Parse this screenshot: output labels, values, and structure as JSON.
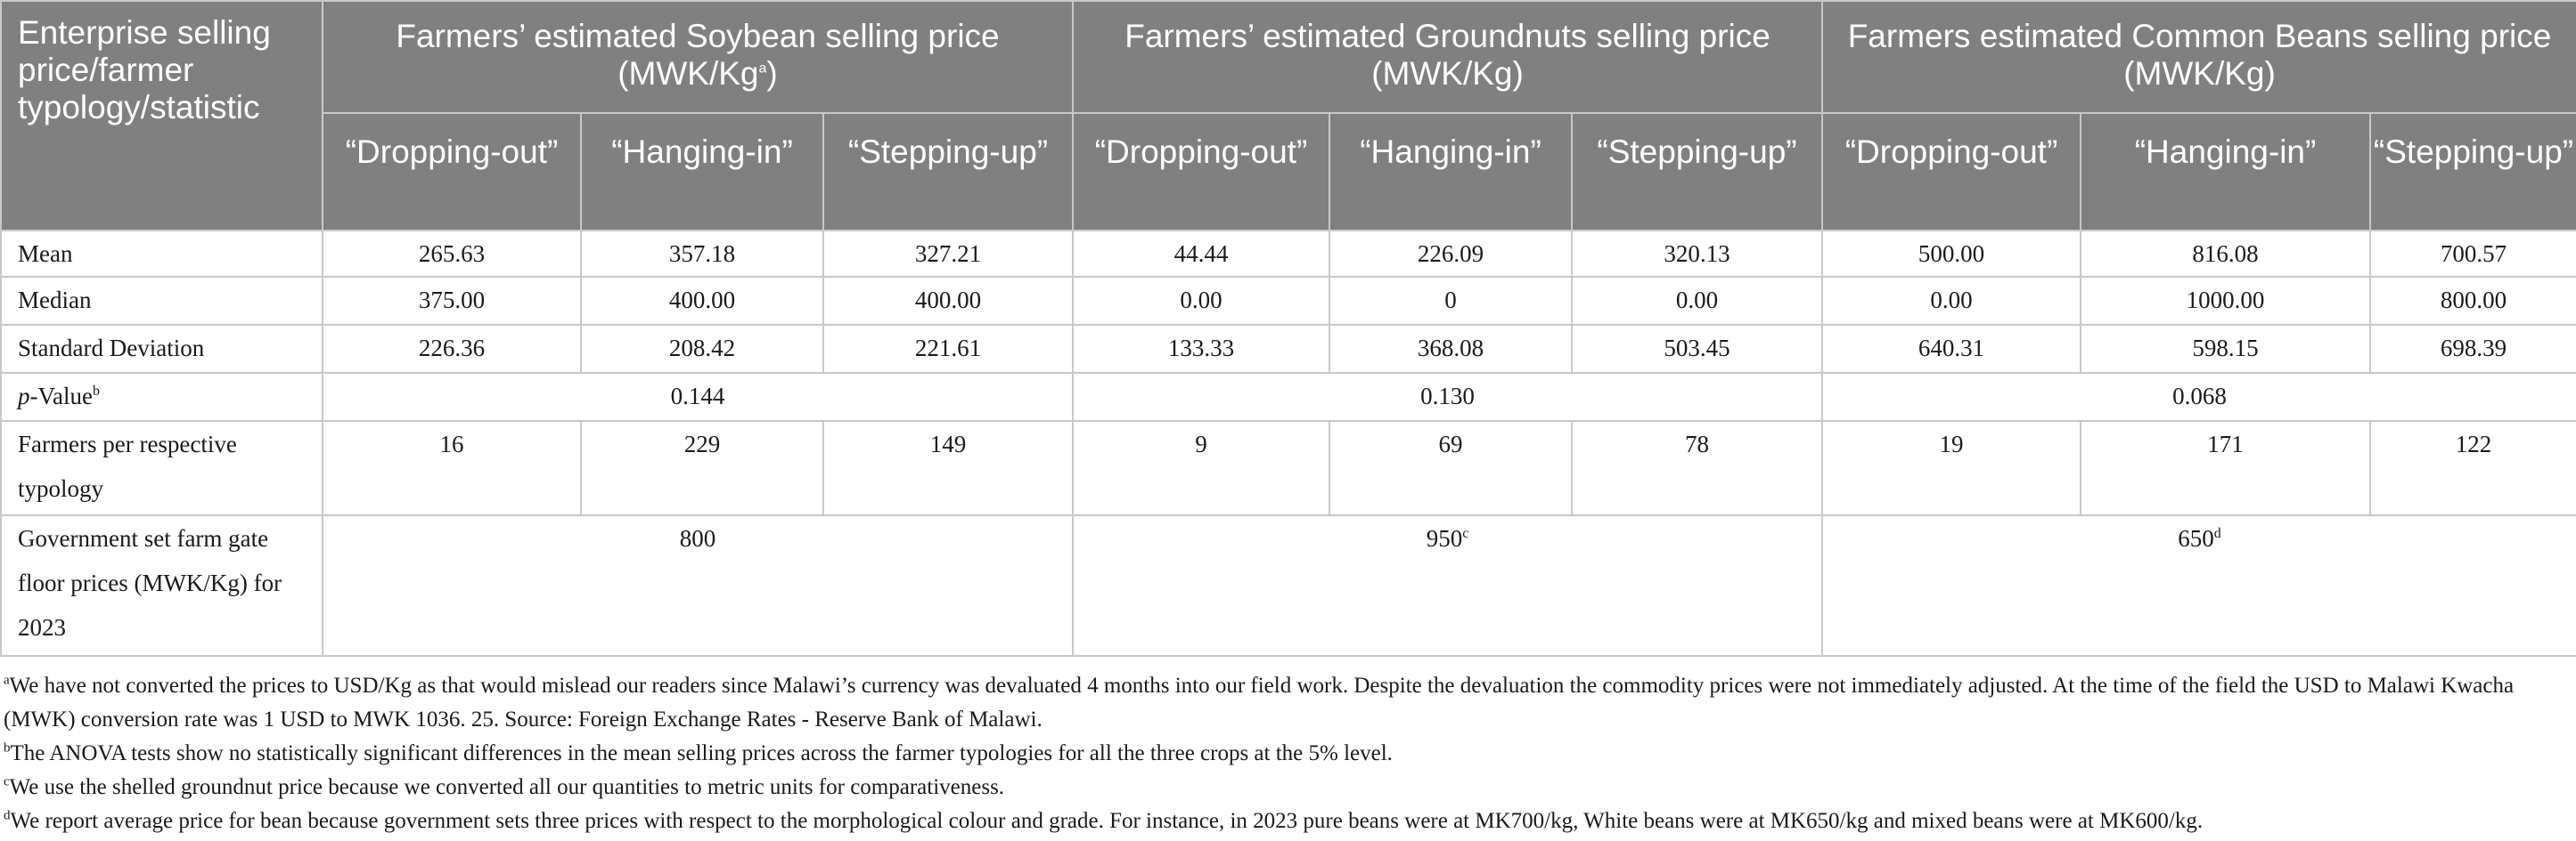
{
  "header": {
    "corner": "Enterprise selling price/farmer typology/statistic",
    "groups": [
      {
        "label": "Farmers’ estimated Soybean selling price (MWK/Kg",
        "sup": "a",
        "tail": ")"
      },
      {
        "label": "Farmers’ estimated Groundnuts selling price (MWK/Kg)",
        "sup": "",
        "tail": ""
      },
      {
        "label": "Farmers estimated Common Beans selling price (MWK/Kg)",
        "sup": "",
        "tail": ""
      }
    ],
    "typologies": [
      "“Dropping-out”",
      "“Hanging-in”",
      "“Stepping-up”",
      "“Dropping-out”",
      "“Hanging-in”",
      "“Stepping-up”",
      "“Dropping-out”",
      "“Hanging-in”",
      "“Stepping-up”"
    ]
  },
  "rows": {
    "mean": {
      "label": "Mean",
      "values": [
        "265.63",
        "357.18",
        "327.21",
        "44.44",
        "226.09",
        "320.13",
        "500.00",
        "816.08",
        "700.57"
      ]
    },
    "median": {
      "label": "Median",
      "values": [
        "375.00",
        "400.00",
        "400.00",
        "0.00",
        "0",
        "0.00",
        "0.00",
        "1000.00",
        "800.00"
      ]
    },
    "sd": {
      "label": "Standard Deviation",
      "values": [
        "226.36",
        "208.42",
        "221.61",
        "133.33",
        "368.08",
        "503.45",
        "640.31",
        "598.15",
        "698.39"
      ]
    },
    "pvalue": {
      "label_italic": "p",
      "label_rest": "-Value",
      "label_sup": "b",
      "values": [
        "0.144",
        "0.130",
        "0.068"
      ]
    },
    "farmers": {
      "label": "Farmers per respective typology",
      "values": [
        "16",
        "229",
        "149",
        "9",
        "69",
        "78",
        "19",
        "171",
        "122"
      ]
    },
    "gov": {
      "label": "Government set farm gate floor prices (MWK/Kg) for 2023",
      "values": [
        "800",
        "950",
        "650"
      ],
      "sups": [
        "",
        "c",
        "d"
      ]
    }
  },
  "footnotes": [
    {
      "mark": "a",
      "text": "We have not converted the prices to USD/Kg as that would mislead our readers since Malawi’s currency was devaluated 4 months into our field work. Despite the devaluation the commodity prices were not immediately adjusted. At the time of the field the USD to Malawi Kwacha (MWK) conversion rate was 1 USD to MWK 1036. 25. Source: Foreign Exchange Rates - Reserve Bank of Malawi."
    },
    {
      "mark": "b",
      "text": "The ANOVA tests show no statistically significant differences in the mean selling prices across the farmer typologies for all the three crops at the 5% level."
    },
    {
      "mark": "c",
      "text": "We use the shelled groundnut price because we converted all our quantities to metric units for comparativeness."
    },
    {
      "mark": "d",
      "text": "We report average price for bean because government sets three prices with respect to the morphological colour and grade. For instance, in 2023 pure beans were at MK700/kg, White beans were at MK650/kg and mixed beans were at MK600/kg."
    }
  ]
}
